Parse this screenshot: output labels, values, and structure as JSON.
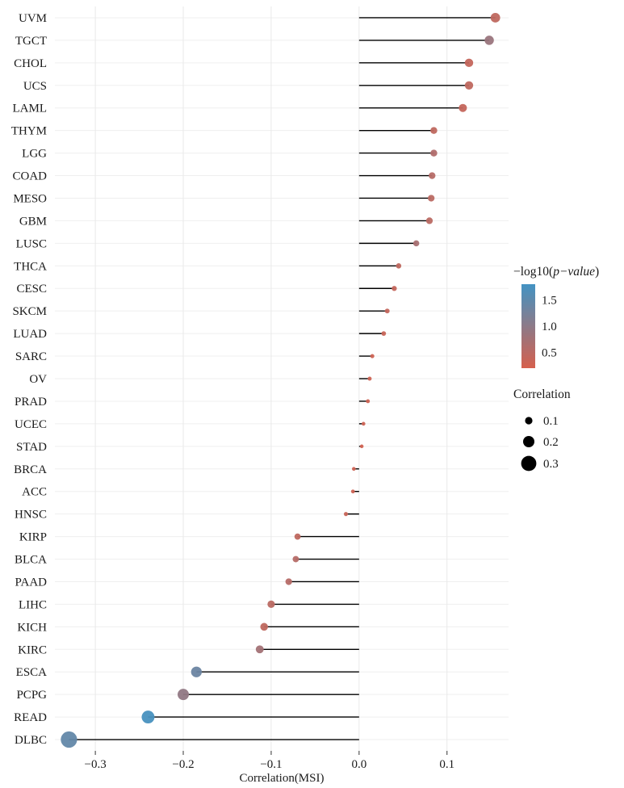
{
  "chart_data": {
    "type": "lollipop",
    "title": "",
    "xlabel": "Correlation(MSI)",
    "xlim": [
      -0.346,
      0.17
    ],
    "x_ticks": [
      {
        "value": -0.3,
        "label": "−0.3"
      },
      {
        "value": -0.2,
        "label": "−0.2"
      },
      {
        "value": -0.1,
        "label": "−0.1"
      },
      {
        "value": 0.0,
        "label": "0.0"
      },
      {
        "value": 0.1,
        "label": "0.1"
      }
    ],
    "categories": [
      "UVM",
      "TGCT",
      "CHOL",
      "UCS",
      "LAML",
      "THYM",
      "LGG",
      "COAD",
      "MESO",
      "GBM",
      "LUSC",
      "THCA",
      "CESC",
      "SKCM",
      "LUAD",
      "SARC",
      "OV",
      "PRAD",
      "UCEC",
      "STAD",
      "BRCA",
      "ACC",
      "HNSC",
      "KIRP",
      "BLCA",
      "PAAD",
      "LIHC",
      "KICH",
      "KIRC",
      "ESCA",
      "PCPG",
      "READ",
      "DLBC"
    ],
    "correlation": [
      0.155,
      0.148,
      0.125,
      0.125,
      0.118,
      0.085,
      0.085,
      0.083,
      0.082,
      0.08,
      0.065,
      0.045,
      0.04,
      0.032,
      0.028,
      0.015,
      0.012,
      0.01,
      0.005,
      0.003,
      -0.006,
      -0.007,
      -0.015,
      -0.07,
      -0.072,
      -0.08,
      -0.1,
      -0.108,
      -0.113,
      -0.185,
      -0.2,
      -0.24,
      -0.33
    ],
    "neglog10_p": [
      0.45,
      0.85,
      0.4,
      0.45,
      0.4,
      0.45,
      0.6,
      0.55,
      0.5,
      0.5,
      0.7,
      0.45,
      0.4,
      0.4,
      0.35,
      0.3,
      0.3,
      0.3,
      0.3,
      0.25,
      0.3,
      0.3,
      0.35,
      0.45,
      0.55,
      0.55,
      0.5,
      0.45,
      0.75,
      1.35,
      0.95,
      1.75,
      1.45
    ],
    "stick_color": "#000000",
    "grid_color": "#efefef",
    "legend": {
      "color_title_prefix": "−log10(",
      "color_title_italic": "p−value",
      "color_title_suffix": ")",
      "color_ticks": [
        {
          "value": 1.5,
          "label": "1.5"
        },
        {
          "value": 1.0,
          "label": "1.0"
        },
        {
          "value": 0.5,
          "label": "0.5"
        }
      ],
      "color_low": "#D6604D",
      "color_high": "#4393C3",
      "color_domain": [
        0.2,
        1.8
      ],
      "size_title": "Correlation",
      "size_ticks": [
        {
          "value": 0.1,
          "label": "0.1"
        },
        {
          "value": 0.2,
          "label": "0.2"
        },
        {
          "value": 0.3,
          "label": "0.3"
        }
      ]
    }
  }
}
